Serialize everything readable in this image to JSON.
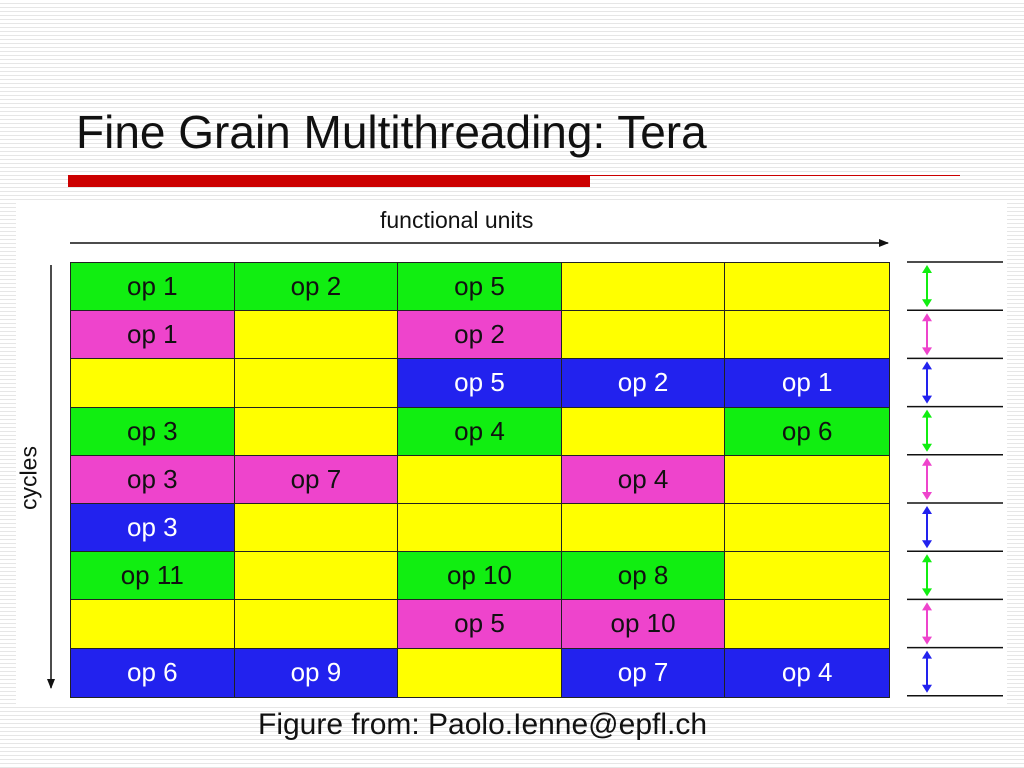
{
  "title": "Fine Grain Multithreading: Tera",
  "caption": "Figure from: Paolo.Ienne@epfl.ch",
  "diagram": {
    "xlabel": "functional units",
    "ylabel": "cycles",
    "colors": {
      "green": "#11ee11",
      "pink": "#ee44cc",
      "yellow": "#ffff00",
      "blue": "#2222ee",
      "accent_red": "#cc0000"
    },
    "rows": [
      [
        {
          "color": "green",
          "label": "op 1"
        },
        {
          "color": "green",
          "label": "op 2"
        },
        {
          "color": "green",
          "label": "op 5"
        },
        {
          "color": "yellow",
          "label": ""
        },
        {
          "color": "yellow",
          "label": ""
        }
      ],
      [
        {
          "color": "pink",
          "label": "op 1"
        },
        {
          "color": "yellow",
          "label": ""
        },
        {
          "color": "pink",
          "label": "op 2"
        },
        {
          "color": "yellow",
          "label": ""
        },
        {
          "color": "yellow",
          "label": ""
        }
      ],
      [
        {
          "color": "yellow",
          "label": ""
        },
        {
          "color": "yellow",
          "label": ""
        },
        {
          "color": "blue",
          "label": "op 5"
        },
        {
          "color": "blue",
          "label": "op 2"
        },
        {
          "color": "blue",
          "label": "op 1"
        }
      ],
      [
        {
          "color": "green",
          "label": "op 3"
        },
        {
          "color": "yellow",
          "label": ""
        },
        {
          "color": "green",
          "label": "op 4"
        },
        {
          "color": "yellow",
          "label": ""
        },
        {
          "color": "green",
          "label": "op 6"
        }
      ],
      [
        {
          "color": "pink",
          "label": "op 3"
        },
        {
          "color": "pink",
          "label": "op 7"
        },
        {
          "color": "yellow",
          "label": ""
        },
        {
          "color": "pink",
          "label": "op 4"
        },
        {
          "color": "yellow",
          "label": ""
        }
      ],
      [
        {
          "color": "blue",
          "label": "op 3"
        },
        {
          "color": "yellow",
          "label": ""
        },
        {
          "color": "yellow",
          "label": ""
        },
        {
          "color": "yellow",
          "label": ""
        },
        {
          "color": "yellow",
          "label": ""
        }
      ],
      [
        {
          "color": "green",
          "label": "op 11"
        },
        {
          "color": "yellow",
          "label": ""
        },
        {
          "color": "green",
          "label": "op 10"
        },
        {
          "color": "green",
          "label": "op 8"
        },
        {
          "color": "yellow",
          "label": ""
        }
      ],
      [
        {
          "color": "yellow",
          "label": ""
        },
        {
          "color": "yellow",
          "label": ""
        },
        {
          "color": "pink",
          "label": "op 5"
        },
        {
          "color": "pink",
          "label": "op 10"
        },
        {
          "color": "yellow",
          "label": ""
        }
      ],
      [
        {
          "color": "blue",
          "label": "op 6"
        },
        {
          "color": "blue",
          "label": "op 9"
        },
        {
          "color": "yellow",
          "label": ""
        },
        {
          "color": "blue",
          "label": "op 7"
        },
        {
          "color": "blue",
          "label": "op 4"
        }
      ]
    ],
    "cycle_markers": [
      "green",
      "pink",
      "blue",
      "green",
      "pink",
      "blue",
      "green",
      "pink",
      "blue"
    ]
  }
}
